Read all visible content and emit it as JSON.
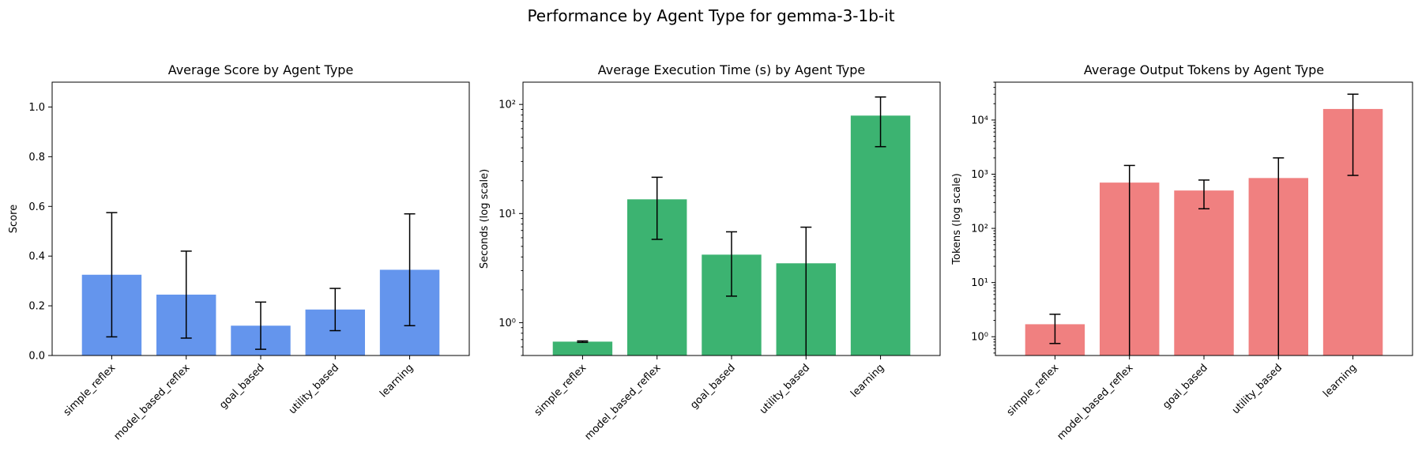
{
  "figure_title": "Performance by Agent Type for gemma-3-1b-it",
  "chart_data": [
    {
      "type": "bar",
      "title": "Average Score by Agent Type",
      "xlabel": "",
      "ylabel": "Score",
      "scale": "linear",
      "ylim": [
        0,
        1.1
      ],
      "yticks": [
        0.0,
        0.2,
        0.4,
        0.6,
        0.8,
        1.0
      ],
      "ytick_labels": [
        "0.0",
        "0.2",
        "0.4",
        "0.6",
        "0.8",
        "1.0"
      ],
      "color": "#6495ed",
      "categories": [
        "simple_reflex",
        "model_based_reflex",
        "goal_based",
        "utility_based",
        "learning"
      ],
      "values": [
        0.325,
        0.245,
        0.12,
        0.185,
        0.345
      ],
      "error_low": [
        0.075,
        0.07,
        0.025,
        0.1,
        0.12
      ],
      "error_high": [
        0.575,
        0.42,
        0.215,
        0.27,
        0.57
      ],
      "grid": false
    },
    {
      "type": "bar",
      "title": "Average Execution Time (s) by Agent Type",
      "xlabel": "",
      "ylabel": "Seconds (log scale)",
      "scale": "log",
      "ylim": [
        0.5,
        160
      ],
      "yticks": [
        1,
        10,
        100
      ],
      "ytick_labels": [
        "10⁰",
        "10¹",
        "10²"
      ],
      "color": "#3cb371",
      "categories": [
        "simple_reflex",
        "model_based_reflex",
        "goal_based",
        "utility_based",
        "learning"
      ],
      "values": [
        0.67,
        13.5,
        4.2,
        3.5,
        79
      ],
      "error_low": [
        0.66,
        5.8,
        1.75,
        0.5,
        41
      ],
      "error_high": [
        0.68,
        21.5,
        6.8,
        7.5,
        117
      ],
      "grid": false
    },
    {
      "type": "bar",
      "title": "Average Output Tokens by Agent Type",
      "xlabel": "",
      "ylabel": "Tokens (log scale)",
      "scale": "log",
      "ylim": [
        0.45,
        50000
      ],
      "yticks": [
        1,
        10,
        100,
        1000,
        10000
      ],
      "ytick_labels": [
        "10⁰",
        "10¹",
        "10²",
        "10³",
        "10⁴"
      ],
      "color": "#f08080",
      "categories": [
        "simple_reflex",
        "model_based_reflex",
        "goal_based",
        "utility_based",
        "learning"
      ],
      "values": [
        1.7,
        700,
        500,
        850,
        16000
      ],
      "error_low": [
        0.75,
        0.45,
        230,
        0.45,
        950
      ],
      "error_high": [
        2.6,
        1450,
        780,
        2000,
        30000
      ],
      "grid": false
    }
  ]
}
